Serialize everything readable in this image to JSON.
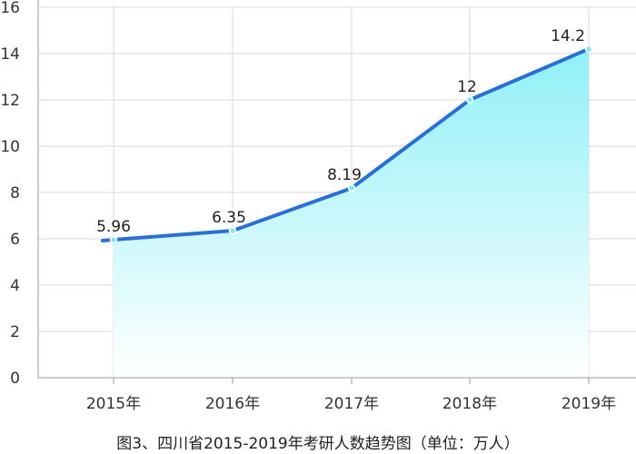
{
  "chart_data": {
    "type": "area",
    "categories": [
      "2015年",
      "2016年",
      "2017年",
      "2018年",
      "2019年"
    ],
    "values": [
      5.96,
      6.35,
      8.19,
      12,
      14.2
    ],
    "value_labels": [
      "5.96",
      "6.35",
      "8.19",
      "12",
      "14.2"
    ],
    "ylim": [
      0,
      16
    ],
    "yticks": [
      0,
      2,
      4,
      6,
      8,
      10,
      12,
      14,
      16
    ],
    "grid": true,
    "caption": "图3、四川省2015-2019年考研人数趋势图（单位：万人）"
  },
  "colors": {
    "line": "#2a6fd6",
    "area_top": "#8ff0f7",
    "area_bottom": "#ffffff",
    "marker": "#7fe8f4",
    "grid": "#d9d9d9",
    "axis": "#9a9a9a"
  }
}
